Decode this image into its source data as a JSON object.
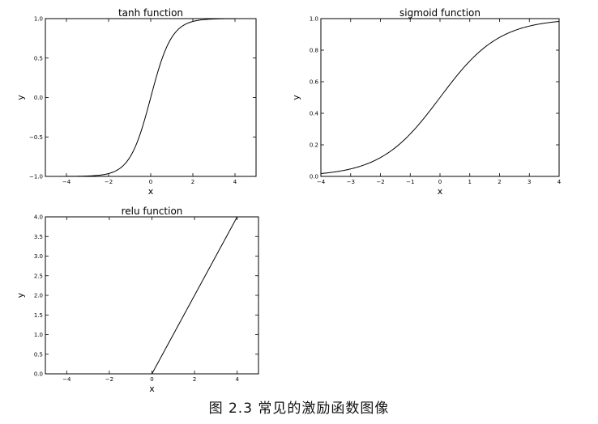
{
  "caption": "图 2.3   常见的激励函数图像",
  "chart_data": [
    {
      "type": "line",
      "title": "tanh function",
      "xlabel": "x",
      "ylabel": "y",
      "function": "tanh",
      "xlim": [
        -5,
        5
      ],
      "ylim": [
        -1.0,
        1.0
      ],
      "xticks": [
        -4,
        -2,
        0,
        2,
        4
      ],
      "xtick_labels": [
        "−4",
        "−2",
        "0",
        "2",
        "4"
      ],
      "yticks": [
        -1.0,
        -0.5,
        0.0,
        0.5,
        1.0
      ],
      "ytick_labels": [
        "−1.0",
        "−0.5",
        "0.0",
        "0.5",
        "1.0"
      ],
      "x": [
        -5,
        -4,
        -3,
        -2,
        -1.5,
        -1,
        -0.5,
        0,
        0.5,
        1,
        1.5,
        2,
        3,
        4,
        5
      ],
      "y": [
        -1.0,
        -0.999,
        -0.995,
        -0.964,
        -0.905,
        -0.762,
        -0.462,
        0.0,
        0.462,
        0.762,
        0.905,
        0.964,
        0.995,
        0.999,
        1.0
      ],
      "color": "#000000",
      "grid": false
    },
    {
      "type": "line",
      "title": "sigmoid function",
      "xlabel": "x",
      "ylabel": "y",
      "function": "sigmoid",
      "xlim": [
        -4,
        4
      ],
      "ylim": [
        0.0,
        1.0
      ],
      "xticks": [
        -4,
        -3,
        -2,
        -1,
        0,
        1,
        2,
        3,
        4
      ],
      "xtick_labels": [
        "−4",
        "−3",
        "−2",
        "−1",
        "0",
        "1",
        "2",
        "3",
        "4"
      ],
      "yticks": [
        0.0,
        0.2,
        0.4,
        0.6,
        0.8,
        1.0
      ],
      "ytick_labels": [
        "0.0",
        "0.2",
        "0.4",
        "0.6",
        "0.8",
        "1.0"
      ],
      "x": [
        -4,
        -3,
        -2,
        -1,
        0,
        1,
        2,
        3,
        4
      ],
      "y": [
        0.018,
        0.047,
        0.119,
        0.269,
        0.5,
        0.731,
        0.881,
        0.953,
        0.982
      ],
      "color": "#000000",
      "grid": false
    },
    {
      "type": "line",
      "title": "relu function",
      "xlabel": "x",
      "ylabel": "y",
      "function": "relu",
      "xlim": [
        -5,
        5
      ],
      "ylim": [
        0.0,
        4.0
      ],
      "xticks": [
        -4,
        -2,
        0,
        2,
        4
      ],
      "xtick_labels": [
        "−4",
        "−2",
        "0",
        "2",
        "4"
      ],
      "yticks": [
        0.0,
        0.5,
        1.0,
        1.5,
        2.0,
        2.5,
        3.0,
        3.5,
        4.0
      ],
      "ytick_labels": [
        "0.0",
        "0.5",
        "1.0",
        "1.5",
        "2.0",
        "2.5",
        "3.0",
        "3.5",
        "4.0"
      ],
      "x": [
        -5,
        0,
        4
      ],
      "y": [
        0,
        0,
        4
      ],
      "color": "#000000",
      "grid": false
    }
  ]
}
